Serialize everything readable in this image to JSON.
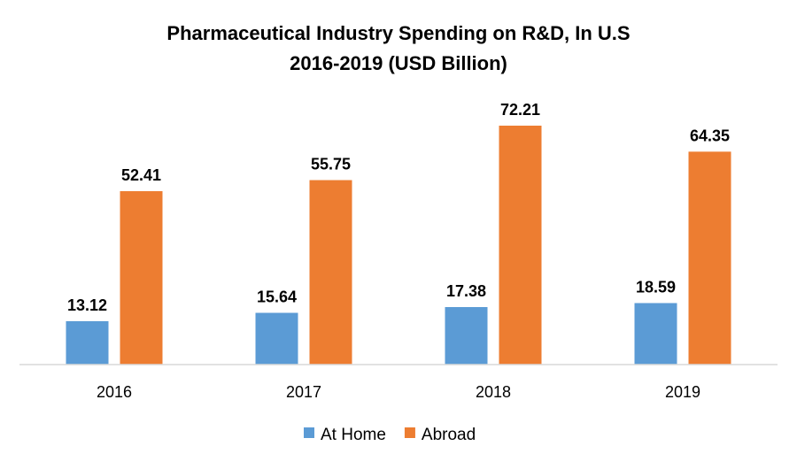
{
  "chart_data": {
    "type": "bar",
    "title": [
      "Pharmaceutical Industry Spending on R&D,  In U.S",
      "2016-2019 (USD Billion)"
    ],
    "categories": [
      "2016",
      "2017",
      "2018",
      "2019"
    ],
    "series": [
      {
        "name": "At Home",
        "color": "#5B9BD5",
        "values": [
          13.12,
          15.64,
          17.38,
          18.59
        ]
      },
      {
        "name": "Abroad",
        "color": "#ED7D31",
        "values": [
          52.41,
          55.75,
          72.21,
          64.35
        ]
      }
    ],
    "xlabel": "",
    "ylabel": "",
    "ylim": [
      0,
      80
    ],
    "grid": false,
    "legend_position": "bottom"
  }
}
